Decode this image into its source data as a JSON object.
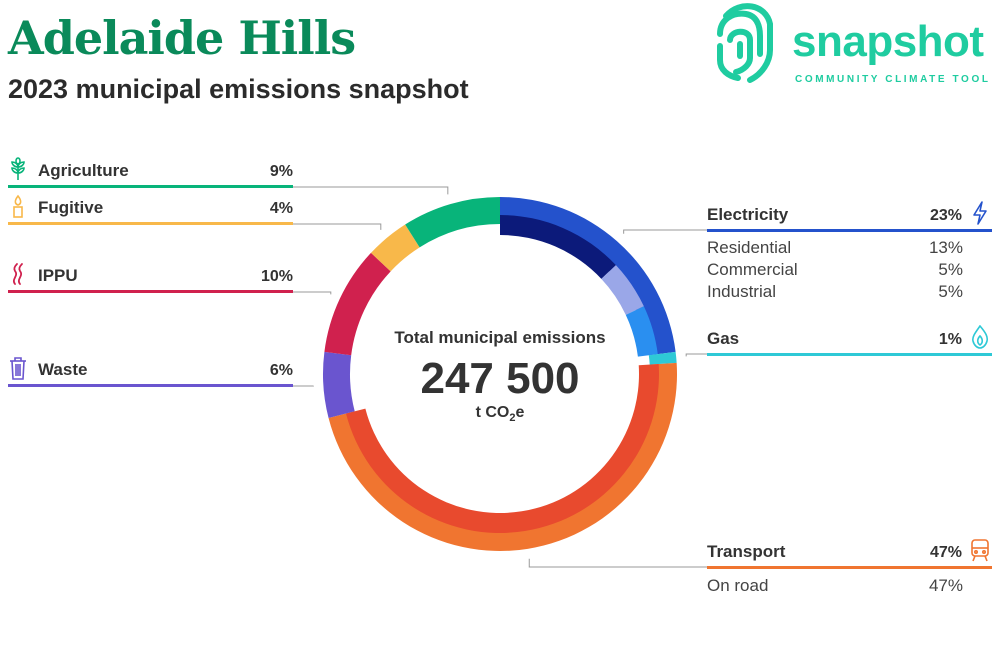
{
  "title": "Adelaide Hills",
  "subtitle": "2023 municipal emissions snapshot",
  "logo": {
    "word": "snapshot",
    "tagline": "COMMUNITY CLIMATE TOOL"
  },
  "center": {
    "label": "Total municipal emissions",
    "value": "247 500",
    "unit": "t CO",
    "unit_sub": "2",
    "unit_tail": "e"
  },
  "categories": [
    {
      "name": "Agriculture",
      "pct_label": "9%",
      "color": "#08b47a",
      "icon": "wheat-icon"
    },
    {
      "name": "Fugitive",
      "pct_label": "4%",
      "color": "#f8b84a",
      "icon": "flame-candle-icon"
    },
    {
      "name": "IPPU",
      "pct_label": "10%",
      "color": "#d0214e",
      "icon": "smoke-icon"
    },
    {
      "name": "Waste",
      "pct_label": "6%",
      "color": "#6a55cf",
      "icon": "bin-icon"
    },
    {
      "name": "Electricity",
      "pct_label": "23%",
      "color": "#2452cc",
      "icon": "lightning-icon",
      "subs": [
        {
          "name": "Residential",
          "pct_label": "13%"
        },
        {
          "name": "Commercial",
          "pct_label": "5%"
        },
        {
          "name": "Industrial",
          "pct_label": "5%"
        }
      ]
    },
    {
      "name": "Gas",
      "pct_label": "1%",
      "color": "#2ec9d6",
      "icon": "gas-flame-icon"
    },
    {
      "name": "Transport",
      "pct_label": "47%",
      "color": "#f07530",
      "icon": "train-icon",
      "subs": [
        {
          "name": "On road",
          "pct_label": "47%"
        }
      ]
    }
  ],
  "chart_data": {
    "type": "pie",
    "donut": true,
    "total": 247500,
    "unit": "t CO2e",
    "title": "Total municipal emissions",
    "slices": [
      {
        "label": "Electricity",
        "value": 23,
        "color": "#2452cc",
        "sub": [
          {
            "label": "Residential",
            "value": 13,
            "color": "#0c1a7a"
          },
          {
            "label": "Commercial",
            "value": 5,
            "color": "#9aa7e8"
          },
          {
            "label": "Industrial",
            "value": 5,
            "color": "#2a8ff0"
          }
        ]
      },
      {
        "label": "Gas",
        "value": 1,
        "color": "#2ec9d6"
      },
      {
        "label": "Transport",
        "value": 47,
        "color": "#f07530",
        "sub": [
          {
            "label": "On road",
            "value": 47,
            "color": "#e84a2e"
          }
        ]
      },
      {
        "label": "Waste",
        "value": 6,
        "color": "#6a55cf"
      },
      {
        "label": "IPPU",
        "value": 10,
        "color": "#d0214e"
      },
      {
        "label": "Fugitive",
        "value": 4,
        "color": "#f8b84a"
      },
      {
        "label": "Agriculture",
        "value": 9,
        "color": "#08b47a"
      }
    ]
  }
}
